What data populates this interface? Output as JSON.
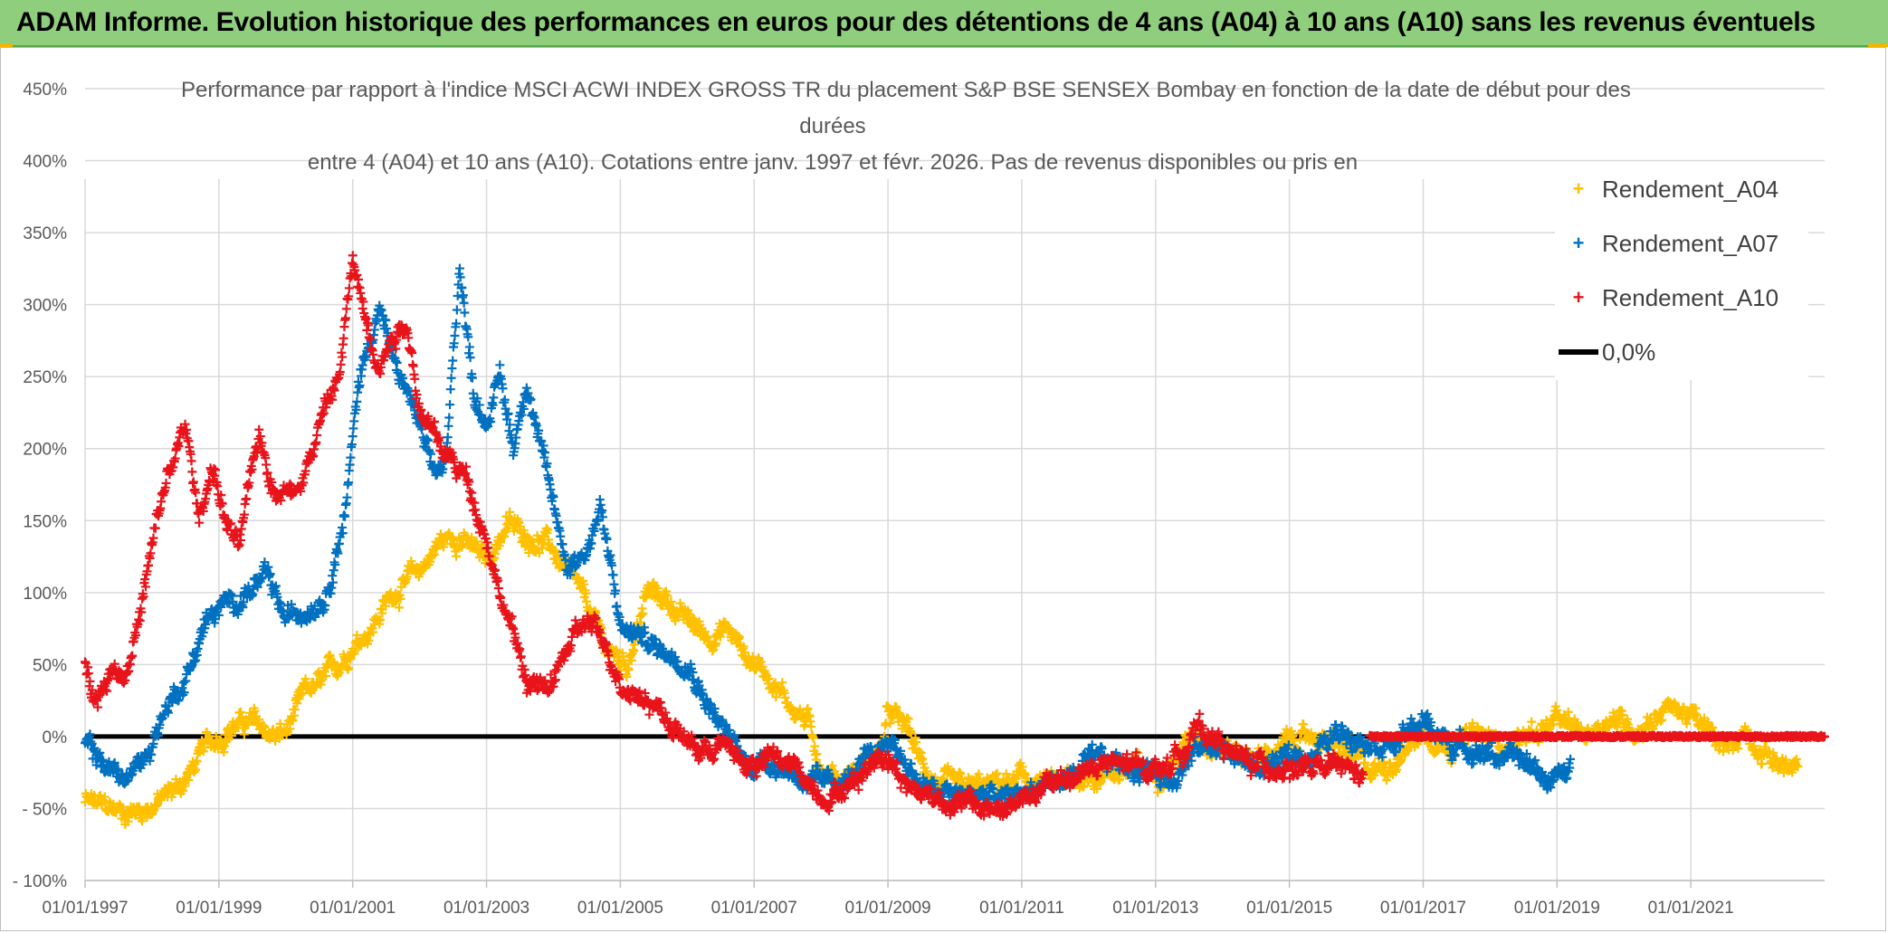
{
  "header": {
    "title": "ADAM Informe. Evolution historique des performances en euros pour des détentions de 4 ans (A04) à 10 ans (A10) sans les revenus éventuels"
  },
  "chart_data": {
    "type": "scatter",
    "title_lines": [
      "Performance par rapport à l'indice MSCI ACWI INDEX GROSS TR  du placement S&P BSE SENSEX Bombay en fonction de la date de début pour des",
      "durées",
      "entre 4 (A04) et 10 ans (A10). Cotations entre janv. 1997 et févr. 2026. Pas de revenus disponibles ou pris en"
    ],
    "x_start_year": 1997,
    "x_end_year": 2023.0,
    "x_ticks": [
      "01/01/1997",
      "01/01/1999",
      "01/01/2001",
      "01/01/2003",
      "01/01/2005",
      "01/01/2007",
      "01/01/2009",
      "01/01/2011",
      "01/01/2013",
      "01/01/2015",
      "01/01/2017",
      "01/01/2019",
      "01/01/2021"
    ],
    "y_ticks": [
      "- 100%",
      "- 50%",
      "0%",
      "50%",
      "100%",
      "150%",
      "200%",
      "250%",
      "300%",
      "350%",
      "400%",
      "450%"
    ],
    "ylim": [
      -100,
      450
    ],
    "grid": true,
    "legend_position": "top-right",
    "series": [
      {
        "name": "Rendement_A04",
        "color": "#ffc000",
        "marker": "+",
        "keypoints": [
          [
            1997.0,
            -45
          ],
          [
            1997.3,
            -50
          ],
          [
            1997.6,
            -52
          ],
          [
            1997.9,
            -50
          ],
          [
            1998.2,
            -42
          ],
          [
            1998.5,
            -30
          ],
          [
            1998.8,
            -8
          ],
          [
            1999.2,
            8
          ],
          [
            1999.5,
            10
          ],
          [
            1999.8,
            0
          ],
          [
            2000.0,
            2
          ],
          [
            2000.3,
            30
          ],
          [
            2000.5,
            35
          ],
          [
            2000.8,
            50
          ],
          [
            2001.0,
            65
          ],
          [
            2001.3,
            78
          ],
          [
            2001.6,
            100
          ],
          [
            2002.0,
            115
          ],
          [
            2002.3,
            135
          ],
          [
            2002.6,
            140
          ],
          [
            2002.8,
            130
          ],
          [
            2003.0,
            120
          ],
          [
            2003.3,
            148
          ],
          [
            2003.6,
            140
          ],
          [
            2003.9,
            135
          ],
          [
            2004.2,
            115
          ],
          [
            2004.5,
            90
          ],
          [
            2004.8,
            60
          ],
          [
            2005.1,
            50
          ],
          [
            2005.4,
            100
          ],
          [
            2005.7,
            95
          ],
          [
            2006.0,
            80
          ],
          [
            2006.3,
            70
          ],
          [
            2006.6,
            75
          ],
          [
            2006.9,
            55
          ],
          [
            2007.2,
            45
          ],
          [
            2007.5,
            25
          ],
          [
            2007.8,
            10
          ],
          [
            2008.0,
            -20
          ],
          [
            2008.3,
            -30
          ],
          [
            2008.6,
            -20
          ],
          [
            2008.9,
            -10
          ],
          [
            2009.0,
            15
          ],
          [
            2009.3,
            5
          ],
          [
            2009.5,
            -20
          ],
          [
            2009.8,
            -35
          ],
          [
            2010.2,
            -38
          ],
          [
            2010.6,
            -35
          ],
          [
            2011.0,
            -30
          ],
          [
            2011.4,
            -35
          ],
          [
            2011.8,
            -30
          ],
          [
            2012.2,
            -25
          ],
          [
            2012.6,
            -22
          ],
          [
            2013.0,
            -25
          ],
          [
            2013.4,
            -10
          ],
          [
            2013.6,
            5
          ],
          [
            2013.9,
            -5
          ],
          [
            2014.2,
            -10
          ],
          [
            2014.6,
            -15
          ],
          [
            2015.0,
            -5
          ],
          [
            2015.4,
            0
          ],
          [
            2015.8,
            -10
          ],
          [
            2016.2,
            -25
          ],
          [
            2016.6,
            -15
          ],
          [
            2017.0,
            5
          ],
          [
            2017.4,
            -5
          ],
          [
            2017.8,
            0
          ],
          [
            2018.2,
            -5
          ],
          [
            2018.6,
            2
          ],
          [
            2019.0,
            10
          ],
          [
            2019.4,
            0
          ],
          [
            2019.8,
            15
          ],
          [
            2020.2,
            5
          ],
          [
            2020.6,
            20
          ],
          [
            2020.9,
            18
          ],
          [
            2021.2,
            5
          ],
          [
            2021.5,
            -10
          ],
          [
            2021.8,
            5
          ],
          [
            2022.1,
            -10
          ],
          [
            2022.4,
            -20
          ],
          [
            2022.6,
            -25
          ]
        ]
      },
      {
        "name": "Rendement_A07",
        "color": "#0070c0",
        "marker": "+",
        "keypoints": [
          [
            1997.0,
            -5
          ],
          [
            1997.3,
            -20
          ],
          [
            1997.6,
            -30
          ],
          [
            1997.9,
            -15
          ],
          [
            1998.2,
            20
          ],
          [
            1998.5,
            40
          ],
          [
            1998.8,
            80
          ],
          [
            1999.1,
            90
          ],
          [
            1999.4,
            100
          ],
          [
            1999.7,
            110
          ],
          [
            2000.0,
            80
          ],
          [
            2000.3,
            90
          ],
          [
            2000.6,
            100
          ],
          [
            2000.9,
            160
          ],
          [
            2001.1,
            250
          ],
          [
            2001.4,
            300
          ],
          [
            2001.6,
            260
          ],
          [
            2001.9,
            230
          ],
          [
            2002.2,
            180
          ],
          [
            2002.4,
            190
          ],
          [
            2002.6,
            330
          ],
          [
            2002.8,
            240
          ],
          [
            2003.0,
            220
          ],
          [
            2003.2,
            250
          ],
          [
            2003.4,
            200
          ],
          [
            2003.6,
            250
          ],
          [
            2003.9,
            180
          ],
          [
            2004.2,
            120
          ],
          [
            2004.5,
            130
          ],
          [
            2004.7,
            160
          ],
          [
            2005.0,
            75
          ],
          [
            2005.3,
            70
          ],
          [
            2005.6,
            60
          ],
          [
            2006.0,
            55
          ],
          [
            2006.3,
            25
          ],
          [
            2006.6,
            0
          ],
          [
            2006.9,
            -20
          ],
          [
            2007.2,
            -15
          ],
          [
            2007.6,
            -25
          ],
          [
            2008.0,
            -35
          ],
          [
            2008.4,
            -30
          ],
          [
            2008.8,
            -15
          ],
          [
            2009.0,
            0
          ],
          [
            2009.3,
            -20
          ],
          [
            2009.6,
            -38
          ],
          [
            2010.0,
            -42
          ],
          [
            2010.4,
            -40
          ],
          [
            2010.8,
            -45
          ],
          [
            2011.2,
            -35
          ],
          [
            2011.6,
            -30
          ],
          [
            2012.0,
            -20
          ],
          [
            2012.4,
            -18
          ],
          [
            2012.8,
            -22
          ],
          [
            2013.2,
            -28
          ],
          [
            2013.6,
            -10
          ],
          [
            2013.9,
            -5
          ],
          [
            2014.2,
            -15
          ],
          [
            2014.6,
            -22
          ],
          [
            2015.0,
            -15
          ],
          [
            2015.4,
            -10
          ],
          [
            2015.8,
            5
          ],
          [
            2016.2,
            0
          ],
          [
            2016.6,
            -5
          ],
          [
            2017.0,
            10
          ],
          [
            2017.4,
            -5
          ],
          [
            2017.8,
            -8
          ],
          [
            2018.2,
            -15
          ],
          [
            2018.6,
            -20
          ],
          [
            2018.9,
            -30
          ],
          [
            2019.2,
            -25
          ]
        ]
      },
      {
        "name": "Rendement_A10",
        "color": "#e8141b",
        "marker": "+",
        "keypoints": [
          [
            1997.0,
            50
          ],
          [
            1997.2,
            30
          ],
          [
            1997.4,
            50
          ],
          [
            1997.6,
            45
          ],
          [
            1997.8,
            80
          ],
          [
            1998.0,
            130
          ],
          [
            1998.2,
            175
          ],
          [
            1998.5,
            215
          ],
          [
            1998.7,
            150
          ],
          [
            1998.9,
            190
          ],
          [
            1999.1,
            150
          ],
          [
            1999.3,
            130
          ],
          [
            1999.6,
            210
          ],
          [
            1999.8,
            175
          ],
          [
            2000.1,
            170
          ],
          [
            2000.4,
            200
          ],
          [
            2000.6,
            230
          ],
          [
            2000.8,
            250
          ],
          [
            2001.0,
            330
          ],
          [
            2001.2,
            290
          ],
          [
            2001.4,
            260
          ],
          [
            2001.6,
            280
          ],
          [
            2001.8,
            290
          ],
          [
            2002.0,
            230
          ],
          [
            2002.3,
            200
          ],
          [
            2002.5,
            190
          ],
          [
            2002.7,
            180
          ],
          [
            2003.0,
            140
          ],
          [
            2003.2,
            100
          ],
          [
            2003.4,
            70
          ],
          [
            2003.6,
            40
          ],
          [
            2003.9,
            30
          ],
          [
            2004.2,
            60
          ],
          [
            2004.5,
            80
          ],
          [
            2004.8,
            60
          ],
          [
            2005.0,
            40
          ],
          [
            2005.3,
            30
          ],
          [
            2005.6,
            20
          ],
          [
            2005.9,
            0
          ],
          [
            2006.2,
            -10
          ],
          [
            2006.5,
            -5
          ],
          [
            2006.9,
            -20
          ],
          [
            2007.3,
            -15
          ],
          [
            2007.7,
            -25
          ],
          [
            2008.0,
            -40
          ],
          [
            2008.4,
            -35
          ],
          [
            2008.8,
            -15
          ],
          [
            2009.0,
            -10
          ],
          [
            2009.3,
            -35
          ],
          [
            2009.6,
            -40
          ],
          [
            2010.0,
            -45
          ],
          [
            2010.4,
            -50
          ],
          [
            2010.8,
            -50
          ],
          [
            2011.2,
            -40
          ],
          [
            2011.6,
            -30
          ],
          [
            2012.0,
            -22
          ],
          [
            2012.4,
            -20
          ],
          [
            2012.8,
            -22
          ],
          [
            2013.2,
            -20
          ],
          [
            2013.6,
            5
          ],
          [
            2013.9,
            0
          ],
          [
            2014.2,
            -15
          ],
          [
            2014.6,
            -20
          ],
          [
            2015.0,
            -20
          ],
          [
            2015.4,
            -25
          ],
          [
            2015.8,
            -22
          ],
          [
            2016.1,
            -28
          ]
        ],
        "flat_segment": {
          "from": 2016.2,
          "to": 2023.0,
          "value": 0
        }
      }
    ],
    "reference_line": {
      "name": "0,0%",
      "value": 0,
      "color": "#000000"
    }
  }
}
